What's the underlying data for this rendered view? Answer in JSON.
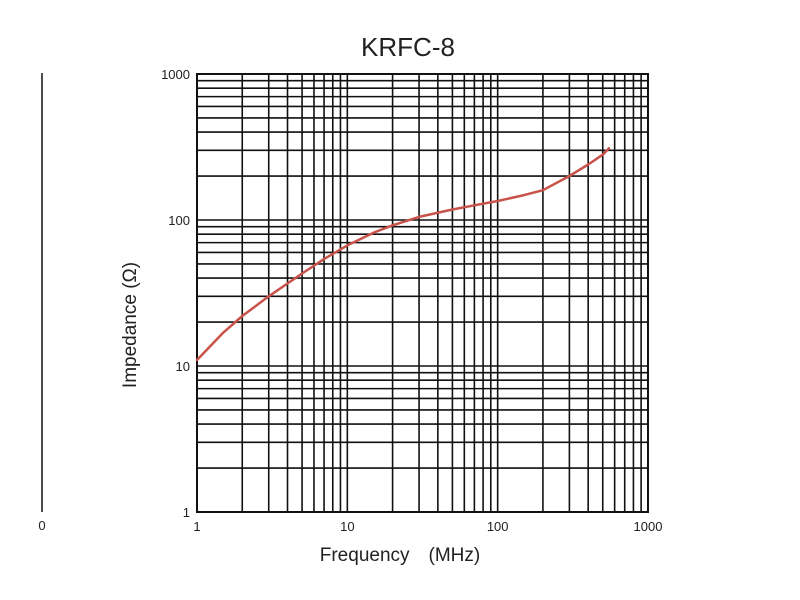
{
  "chart_data": {
    "type": "line",
    "title": "KRFC-8",
    "xlabel": "Frequency　(MHz)",
    "ylabel": "Impedance (Ω)",
    "x_scale": "log",
    "y_scale": "log",
    "xlim": [
      1,
      1000
    ],
    "ylim": [
      1,
      1000
    ],
    "x_ticks": [
      "1",
      "10",
      "100",
      "1000"
    ],
    "y_ticks": [
      "1",
      "10",
      "100",
      "1000"
    ],
    "grid": true,
    "legend": "none",
    "series": [
      {
        "color": "#c8534a",
        "x": [
          1,
          1.5,
          2,
          3,
          5,
          7,
          10,
          15,
          20,
          30,
          50,
          70,
          100,
          150,
          200,
          300,
          400,
          500,
          550
        ],
        "y": [
          11,
          17,
          22,
          30,
          43,
          54,
          67,
          82,
          92,
          105,
          118,
          126,
          135,
          148,
          160,
          200,
          240,
          280,
          310
        ]
      }
    ]
  },
  "left_edge": {
    "partial_label": "0"
  }
}
